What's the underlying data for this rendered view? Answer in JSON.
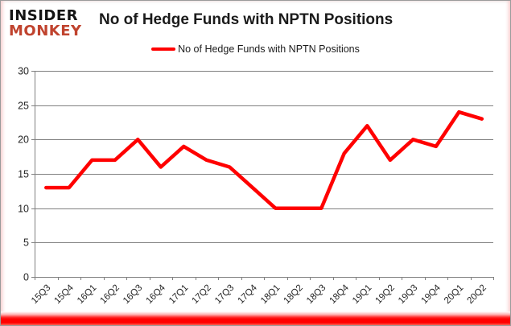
{
  "logo": {
    "line1": "INSIDER",
    "line2": "MONKEY"
  },
  "header": {
    "title": "No of Hedge Funds with NPTN Positions"
  },
  "legend": {
    "label": "No of Hedge Funds with NPTN Positions"
  },
  "chart_data": {
    "type": "line",
    "title": "No of Hedge Funds with NPTN Positions",
    "categories": [
      "15Q3",
      "15Q4",
      "16Q1",
      "16Q2",
      "16Q3",
      "16Q4",
      "17Q1",
      "17Q2",
      "17Q3",
      "17Q4",
      "18Q1",
      "18Q2",
      "18Q3",
      "18Q4",
      "19Q1",
      "19Q2",
      "19Q3",
      "19Q4",
      "20Q1",
      "20Q2"
    ],
    "values": [
      13,
      13,
      17,
      17,
      20,
      16,
      19,
      17,
      16,
      13,
      10,
      10,
      10,
      18,
      22,
      17,
      20,
      19,
      24,
      23
    ],
    "xlabel": "",
    "ylabel": "",
    "ylim": [
      0,
      30
    ],
    "ytick_step": 5,
    "grid": true,
    "legend_position": "top-center",
    "line_color": "#ff0000",
    "grid_color": "#808080",
    "label_color": "#262626",
    "x_label_rotation": -45
  },
  "colors": {
    "accent_red": "#ff0000",
    "logo_red": "#c0432e",
    "logo_black": "#141414",
    "frame_border": "#9b9b9b"
  }
}
